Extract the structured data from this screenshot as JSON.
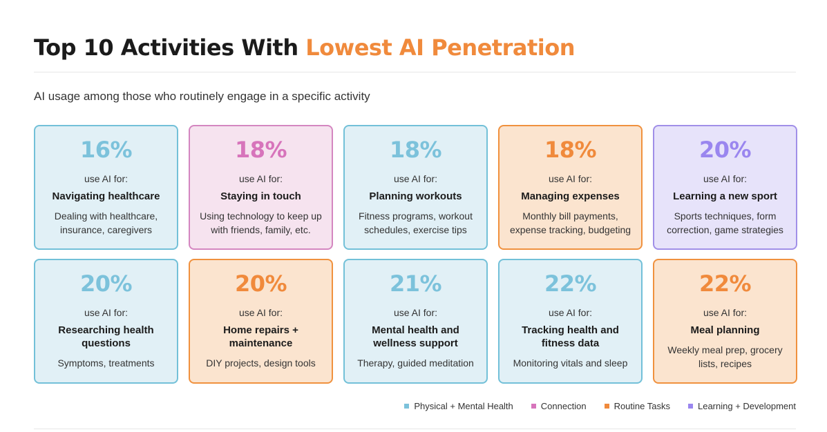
{
  "header": {
    "title_prefix": "Top 10 Activities With",
    "title_accent": "Lowest AI Penetration",
    "subtitle": "AI usage among those who routinely engage in a specific activity"
  },
  "colors": {
    "Physical + Mental Health": "#7cc2db",
    "Connection": "#d774bb",
    "Routine Tasks": "#f08a3c",
    "Learning + Development": "#9a86ef"
  },
  "chart_data": {
    "type": "table",
    "value_prefix_label": "use AI for:",
    "items": [
      {
        "value": "16%",
        "activity": "Navigating healthcare",
        "description": "Dealing with healthcare, insurance, caregivers",
        "category": "Physical + Mental Health"
      },
      {
        "value": "18%",
        "activity": "Staying in touch",
        "description": "Using technology to keep up with friends, family, etc.",
        "category": "Connection"
      },
      {
        "value": "18%",
        "activity": "Planning workouts",
        "description": "Fitness programs, workout schedules, exercise tips",
        "category": "Physical + Mental Health"
      },
      {
        "value": "18%",
        "activity": "Managing expenses",
        "description": "Monthly bill payments, expense tracking, budgeting",
        "category": "Routine Tasks"
      },
      {
        "value": "20%",
        "activity": "Learning a new sport",
        "description": "Sports techniques, form correction, game strategies",
        "category": "Learning + Development"
      },
      {
        "value": "20%",
        "activity": "Researching health questions",
        "description": "Symptoms, treatments",
        "category": "Physical + Mental Health"
      },
      {
        "value": "20%",
        "activity": "Home repairs + maintenance",
        "description": "DIY projects, design tools",
        "category": "Routine Tasks"
      },
      {
        "value": "21%",
        "activity": "Mental health and wellness support",
        "description": "Therapy, guided meditation",
        "category": "Physical + Mental Health"
      },
      {
        "value": "22%",
        "activity": "Tracking health and fitness data",
        "description": "Monitoring vitals and sleep",
        "category": "Physical + Mental Health"
      },
      {
        "value": "22%",
        "activity": "Meal planning",
        "description": "Weekly meal prep, grocery lists, recipes",
        "category": "Routine Tasks"
      }
    ],
    "legend": [
      {
        "label": "Physical + Mental Health",
        "color": "#7cc2db"
      },
      {
        "label": "Connection",
        "color": "#d774bb"
      },
      {
        "label": "Routine Tasks",
        "color": "#f08a3c"
      },
      {
        "label": "Learning + Development",
        "color": "#9a86ef"
      }
    ]
  }
}
